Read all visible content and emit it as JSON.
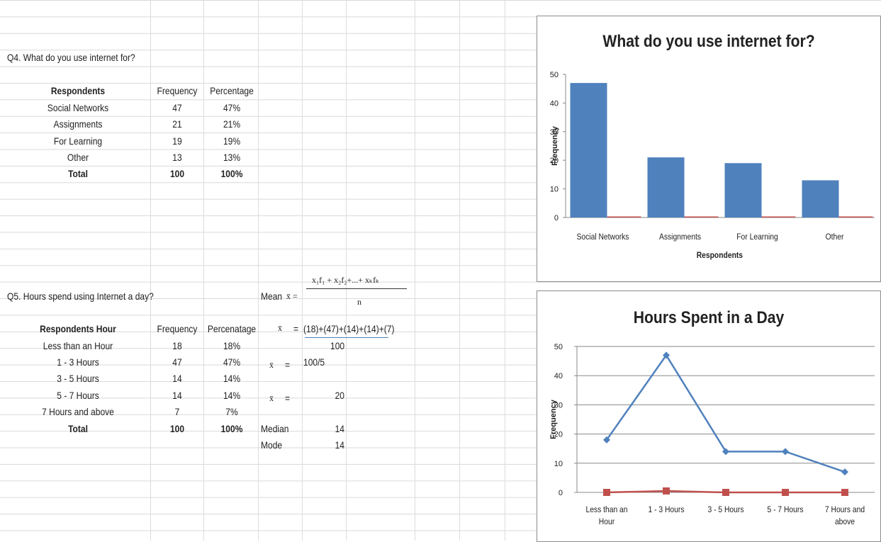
{
  "q4": {
    "question": "Q4. What do you use internet for?",
    "headers": [
      "Respondents",
      "Frequency",
      "Percentage"
    ],
    "rows": [
      [
        "Social Networks",
        "47",
        "47%"
      ],
      [
        "Assignments",
        "21",
        "21%"
      ],
      [
        "For Learning",
        "19",
        "19%"
      ],
      [
        "Other",
        "13",
        "13%"
      ]
    ],
    "total": [
      "Total",
      "100",
      "100%"
    ]
  },
  "q5": {
    "question": "Q5.  Hours  spend using Internet a day?",
    "headers": [
      "Respondents Hour",
      "Frequency",
      "Percenatage"
    ],
    "rows": [
      [
        "Less than an Hour",
        "18",
        "18%"
      ],
      [
        "1 - 3 Hours",
        "47",
        "47%"
      ],
      [
        "3 - 5 Hours",
        "14",
        "14%"
      ],
      [
        "5 - 7 Hours",
        "14",
        "14%"
      ],
      [
        "7 Hours and above",
        "7",
        "7%"
      ]
    ],
    "total": [
      "Total",
      "100",
      "100%"
    ]
  },
  "stats": {
    "mean_label": "Mean",
    "xbar": "x̄",
    "mean_formula_lhs": "x̄ =",
    "mean_formula_num": "x₁f₁ + x₂f₂+...+ xₖfₖ",
    "mean_formula_den": "n",
    "step1_eq": "=",
    "step1_num": "(18)+(47)+(14)+(14)+(7)",
    "step1_den": "100",
    "step2_eq": "=",
    "step2_val": "100/5",
    "step3_eq": "=",
    "step3_val": "20",
    "median_label": "Median",
    "median_val": "14",
    "mode_label": "Mode",
    "mode_val": "14"
  },
  "chart_data": [
    {
      "type": "bar",
      "title": "What do you use internet for?",
      "xlabel": "Respondents",
      "ylabel": "Frequency",
      "categories": [
        "Social Networks",
        "Assignments",
        "For Learning",
        "Other"
      ],
      "series": [
        {
          "values": [
            47,
            21,
            19,
            13
          ],
          "color": "#4f81bd"
        },
        {
          "values": [
            0,
            0,
            0,
            0
          ],
          "color": "#c0504d"
        }
      ],
      "ylim": [
        0,
        50
      ],
      "yticks": [
        0,
        10,
        20,
        30,
        40,
        50
      ],
      "grid": false
    },
    {
      "type": "line",
      "title": "Hours Spent in a Day",
      "xlabel": "",
      "ylabel": "Frequency",
      "categories": [
        [
          "Less than an",
          "Hour"
        ],
        [
          "1 - 3 Hours"
        ],
        [
          "3 - 5 Hours"
        ],
        [
          "5 - 7 Hours"
        ],
        [
          "7 Hours and",
          "above"
        ]
      ],
      "series": [
        {
          "values": [
            18,
            47,
            14,
            14,
            7
          ],
          "color": "#4f81bd",
          "marker": "diamond"
        },
        {
          "values": [
            0,
            0.5,
            0,
            0,
            0
          ],
          "color": "#c0504d",
          "marker": "square"
        }
      ],
      "ylim": [
        0,
        50
      ],
      "yticks": [
        0,
        10,
        20,
        30,
        40,
        50
      ],
      "grid": true
    }
  ]
}
